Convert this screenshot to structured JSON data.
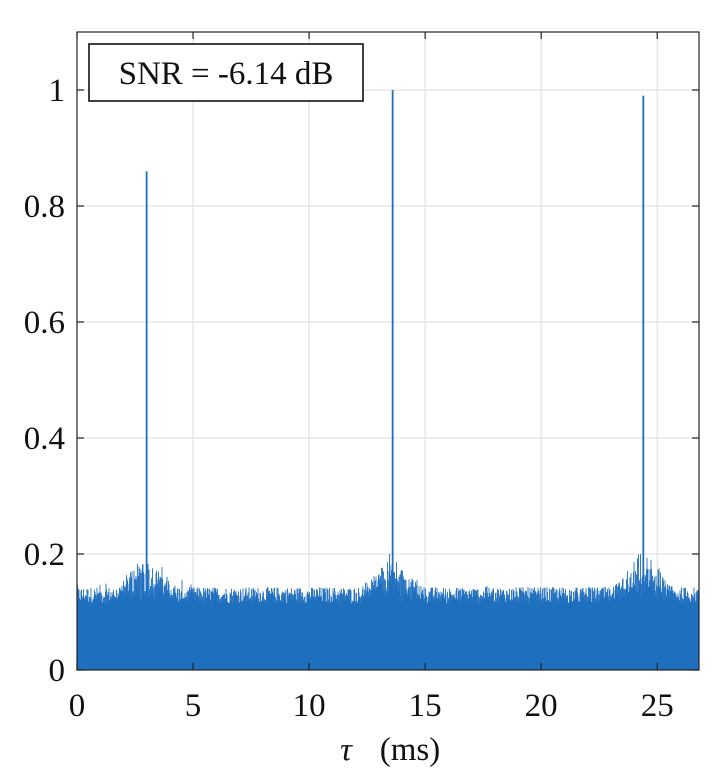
{
  "chart_data": {
    "type": "line",
    "title": "",
    "annotation": "SNR = -6.14 dB",
    "xlabel_symbol": "τ",
    "xlabel_unit": "(ms)",
    "xlim": [
      0,
      26.8
    ],
    "ylim": [
      0,
      1.1
    ],
    "xticks": [
      0,
      5,
      10,
      15,
      20,
      25
    ],
    "yticks": [
      0,
      0.2,
      0.4,
      0.6,
      0.8,
      1
    ],
    "xtick_labels": [
      "0",
      "5",
      "10",
      "15",
      "20",
      "25"
    ],
    "ytick_labels": [
      "0",
      "0.2",
      "0.4",
      "0.6",
      "0.8",
      "1"
    ],
    "grid": true,
    "series": [
      {
        "color": "#1f6fbf",
        "noise_floor_typical": 0.13,
        "noise_floor_max": 0.2,
        "peaks": [
          {
            "x": 3.0,
            "y": 0.86
          },
          {
            "x": 13.6,
            "y": 1.0
          },
          {
            "x": 24.4,
            "y": 0.99
          }
        ]
      }
    ]
  }
}
